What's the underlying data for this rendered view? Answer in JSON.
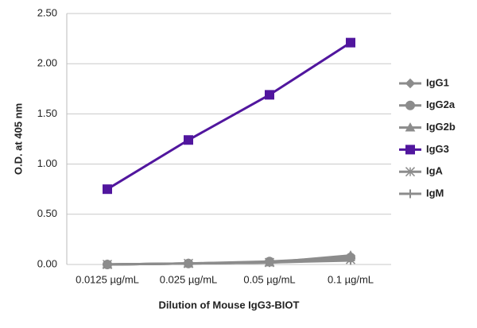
{
  "chart_data": {
    "type": "line",
    "x_label": "Dilution of Mouse IgG3-BIOT",
    "y_label": "O.D. at 405 nm",
    "categories": [
      "0.0125 µg/mL",
      "0.025 µg/mL",
      "0.05 µg/mL",
      "0.1 µg/mL"
    ],
    "series": [
      {
        "name": "IgG1",
        "color": "#8c8c8c",
        "marker": "diamond",
        "values": [
          0.0,
          0.01,
          0.02,
          0.06
        ]
      },
      {
        "name": "IgG2a",
        "color": "#8c8c8c",
        "marker": "circle",
        "values": [
          0.0,
          0.01,
          0.03,
          0.07
        ]
      },
      {
        "name": "IgG2b",
        "color": "#8c8c8c",
        "marker": "triangle",
        "values": [
          0.0,
          0.01,
          0.02,
          0.09
        ]
      },
      {
        "name": "IgG3",
        "color": "#51169e",
        "marker": "square",
        "values": [
          0.75,
          1.24,
          1.69,
          2.21
        ]
      },
      {
        "name": "IgA",
        "color": "#8c8c8c",
        "marker": "star",
        "values": [
          0.0,
          0.01,
          0.02,
          0.05
        ]
      },
      {
        "name": "IgM",
        "color": "#8c8c8c",
        "marker": "plus",
        "values": [
          0.0,
          0.01,
          0.02,
          0.04
        ]
      }
    ],
    "ylim": [
      0,
      2.5
    ],
    "yticks": [
      {
        "value": 0,
        "label": "0.00"
      },
      {
        "value": 0.5,
        "label": "0.50"
      },
      {
        "value": 1,
        "label": "1.00"
      },
      {
        "value": 1.5,
        "label": "1.50"
      },
      {
        "value": 2,
        "label": "2.00"
      },
      {
        "value": 2.5,
        "label": "2.50"
      }
    ],
    "grid": true,
    "legend": "right"
  }
}
